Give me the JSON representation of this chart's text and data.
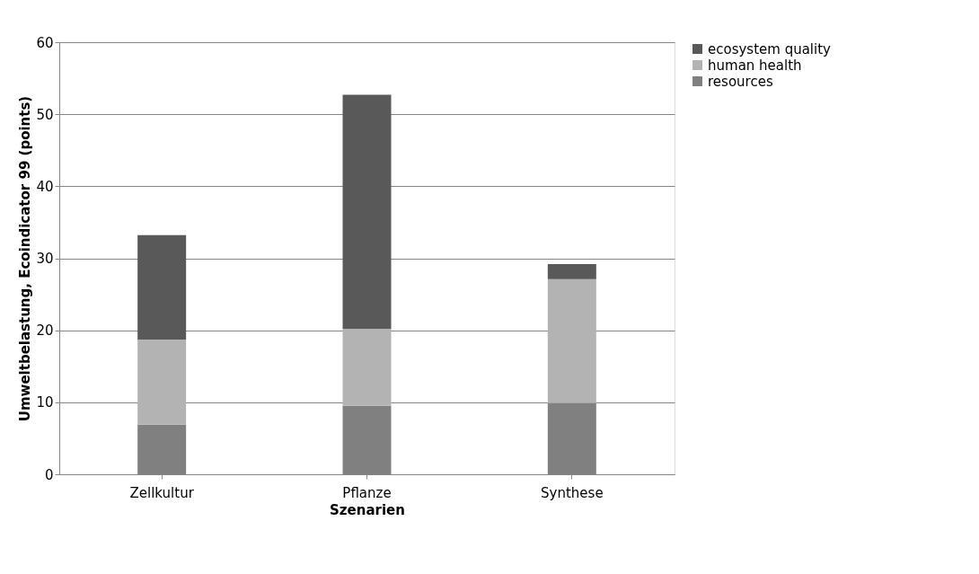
{
  "chart_data": {
    "type": "bar",
    "stacked": true,
    "xlabel": "Szenarien",
    "ylabel": "Umweltbelastung, Ecoindicator 99 (points)",
    "categories": [
      "Zellkultur",
      "Pflanze",
      "Synthese"
    ],
    "series": [
      {
        "name": "resources",
        "color": "#808080",
        "values": [
          6.9,
          9.5,
          9.9
        ]
      },
      {
        "name": "human health",
        "color": "#b3b3b3",
        "values": [
          11.8,
          10.7,
          17.2
        ]
      },
      {
        "name": "ecosystem quality",
        "color": "#595959",
        "values": [
          14.5,
          32.5,
          2.1
        ]
      }
    ],
    "ylim": [
      0,
      60
    ],
    "yticks": [
      0,
      10,
      20,
      30,
      40,
      50,
      60
    ],
    "grid": "y",
    "legend": "right"
  }
}
